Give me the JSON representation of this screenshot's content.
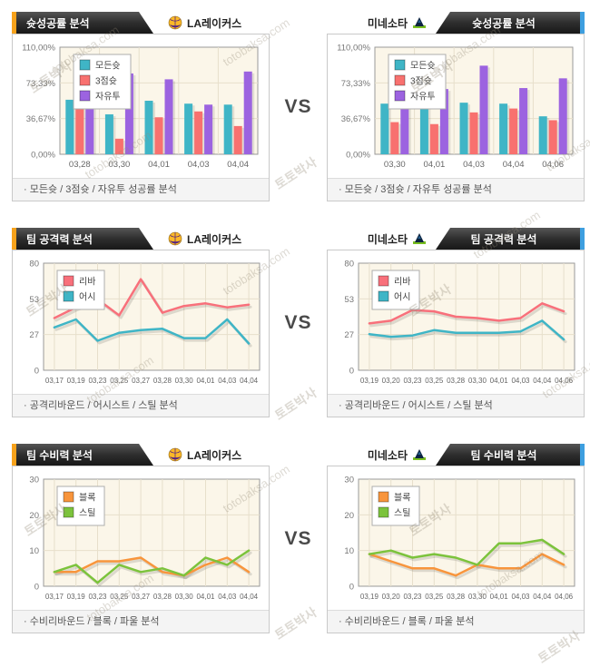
{
  "page": {
    "vs_label": "VS",
    "watermark_line1": "토토박사",
    "watermark_line2": "totobaksa.com"
  },
  "rows": [
    {
      "section_title": "슛성공률 분석",
      "left_team": "LA레이커스",
      "right_team": "미네소타",
      "caption": "· 모든슛 / 3점슛 / 자유투 성공률 분석"
    },
    {
      "section_title": "팀 공격력 분석",
      "left_team": "LA레이커스",
      "right_team": "미네소타",
      "caption": "· 공격리바운드 / 어시스트 / 스틸 분석"
    },
    {
      "section_title": "팀 수비력 분석",
      "left_team": "LA레이커스",
      "right_team": "미네소타",
      "caption": "· 수비리바운드 / 블록 / 파울 분석"
    }
  ],
  "colors": {
    "accent_orange": "#F7A21B",
    "accent_blue": "#3E9FE0",
    "tab_dark": "#2e2e2e",
    "plot_background": "#FBF6E9",
    "grid_line": "#E7DFCB",
    "series_teal": "#3FB5C6",
    "series_red": "#F8716F",
    "series_purple": "#9C63E0",
    "series_line_red": "#F8707B",
    "series_orange": "#F8953C",
    "series_green": "#7CC33C"
  },
  "chart_data": [
    {
      "type": "bar",
      "team": "LA레이커스",
      "section": "슛성공률 분석",
      "categories": [
        "03,28",
        "03,30",
        "04,01",
        "04,03",
        "04,04"
      ],
      "series": [
        {
          "name": "모든슛",
          "color": "#3FB5C6",
          "values": [
            56,
            41,
            55,
            52,
            51
          ]
        },
        {
          "name": "3점슛",
          "color": "#F8716F",
          "values": [
            55,
            16,
            38,
            44,
            29
          ]
        },
        {
          "name": "자유투",
          "color": "#9C63E0",
          "values": [
            59,
            83,
            77,
            51,
            85
          ]
        }
      ],
      "y_ticks": [
        {
          "label": "110,00%",
          "value": 110
        },
        {
          "label": "73,33%",
          "value": 73.33
        },
        {
          "label": "36,67%",
          "value": 36.67
        },
        {
          "label": "0,00%",
          "value": 0
        }
      ],
      "ylim": [
        0,
        110
      ],
      "grid": true,
      "legend_position": "top-left"
    },
    {
      "type": "bar",
      "team": "미네소타",
      "section": "슛성공률 분석",
      "categories": [
        "03,30",
        "04,01",
        "04,03",
        "04,04",
        "04,06"
      ],
      "series": [
        {
          "name": "모든슛",
          "color": "#3FB5C6",
          "values": [
            52,
            48,
            53,
            52,
            39
          ]
        },
        {
          "name": "3점슛",
          "color": "#F8716F",
          "values": [
            33,
            31,
            43,
            47,
            35
          ]
        },
        {
          "name": "자유투",
          "color": "#9C63E0",
          "values": [
            59,
            67,
            91,
            68,
            78
          ]
        }
      ],
      "y_ticks": [
        {
          "label": "110,00%",
          "value": 110
        },
        {
          "label": "73,33%",
          "value": 73.33
        },
        {
          "label": "36,67%",
          "value": 36.67
        },
        {
          "label": "0,00%",
          "value": 0
        }
      ],
      "ylim": [
        0,
        110
      ],
      "grid": true,
      "legend_position": "top-left"
    },
    {
      "type": "line",
      "team": "LA레이커스",
      "section": "팀 공격력 분석",
      "categories": [
        "03,17",
        "03,19",
        "03,23",
        "03,25",
        "03,27",
        "03,28",
        "03,30",
        "04,01",
        "04,03",
        "04,04"
      ],
      "series": [
        {
          "name": "리바",
          "color": "#F8707B",
          "values": [
            39,
            47,
            53,
            41,
            68,
            43,
            48,
            50,
            47,
            49
          ]
        },
        {
          "name": "어시",
          "color": "#3FB5C6",
          "values": [
            32,
            38,
            22,
            28,
            30,
            31,
            24,
            24,
            38,
            20
          ]
        }
      ],
      "y_ticks": [
        {
          "label": "80",
          "value": 80
        },
        {
          "label": "53",
          "value": 53.33
        },
        {
          "label": "27",
          "value": 26.67
        },
        {
          "label": "0",
          "value": 0
        }
      ],
      "ylim": [
        0,
        80
      ],
      "grid": true,
      "legend_position": "top-left"
    },
    {
      "type": "line",
      "team": "미네소타",
      "section": "팀 공격력 분석",
      "categories": [
        "03,19",
        "03,20",
        "03,23",
        "03,25",
        "03,28",
        "03,30",
        "04,01",
        "04,03",
        "04,04",
        "04,06"
      ],
      "series": [
        {
          "name": "리바",
          "color": "#F8707B",
          "values": [
            35,
            37,
            45,
            44,
            40,
            39,
            37,
            39,
            50,
            44
          ]
        },
        {
          "name": "어시",
          "color": "#3FB5C6",
          "values": [
            27,
            25,
            26,
            30,
            28,
            28,
            28,
            29,
            37,
            23
          ]
        }
      ],
      "y_ticks": [
        {
          "label": "80",
          "value": 80
        },
        {
          "label": "53",
          "value": 53.33
        },
        {
          "label": "27",
          "value": 26.67
        },
        {
          "label": "0",
          "value": 0
        }
      ],
      "ylim": [
        0,
        80
      ],
      "grid": true,
      "legend_position": "top-left"
    },
    {
      "type": "line",
      "team": "LA레이커스",
      "section": "팀 수비력 분석",
      "categories": [
        "03,17",
        "03,19",
        "03,23",
        "03,25",
        "03,27",
        "03,28",
        "03,30",
        "04,01",
        "04,03",
        "04,04"
      ],
      "series": [
        {
          "name": "블록",
          "color": "#F8953C",
          "values": [
            4,
            4,
            7,
            7,
            8,
            4,
            3,
            6,
            8,
            4
          ]
        },
        {
          "name": "스틸",
          "color": "#7CC33C",
          "values": [
            4,
            6,
            1,
            6,
            4,
            5,
            3,
            8,
            6,
            10
          ]
        }
      ],
      "y_ticks": [
        {
          "label": "30",
          "value": 30
        },
        {
          "label": "20",
          "value": 20
        },
        {
          "label": "10",
          "value": 10
        },
        {
          "label": "0",
          "value": 0
        }
      ],
      "ylim": [
        0,
        30
      ],
      "grid": true,
      "legend_position": "top-left"
    },
    {
      "type": "line",
      "team": "미네소타",
      "section": "팀 수비력 분석",
      "categories": [
        "03,19",
        "03,20",
        "03,23",
        "03,25",
        "03,28",
        "03,30",
        "04,01",
        "04,03",
        "04,04",
        "04,06"
      ],
      "series": [
        {
          "name": "블록",
          "color": "#F8953C",
          "values": [
            9,
            7,
            5,
            5,
            3,
            6,
            5,
            5,
            9,
            6
          ]
        },
        {
          "name": "스틸",
          "color": "#7CC33C",
          "values": [
            9,
            10,
            8,
            9,
            8,
            6,
            12,
            12,
            13,
            9
          ]
        }
      ],
      "y_ticks": [
        {
          "label": "30",
          "value": 30
        },
        {
          "label": "20",
          "value": 20
        },
        {
          "label": "10",
          "value": 10
        },
        {
          "label": "0",
          "value": 0
        }
      ],
      "ylim": [
        0,
        30
      ],
      "grid": true,
      "legend_position": "top-left"
    }
  ]
}
